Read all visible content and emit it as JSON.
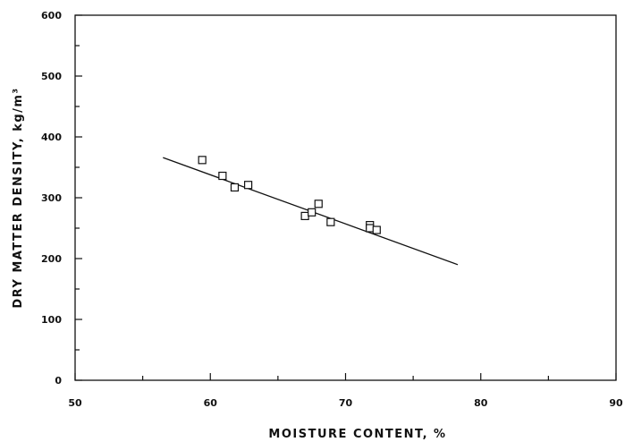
{
  "chart_data": {
    "type": "scatter",
    "xlabel": "MOISTURE CONTENT, %",
    "ylabel": "DRY MATTER DENSITY, kg/m³",
    "xlim": [
      50,
      90
    ],
    "ylim": [
      0,
      600
    ],
    "x_ticks": [
      "50",
      "60",
      "70",
      "80",
      "90"
    ],
    "y_ticks": [
      "0",
      "100",
      "200",
      "300",
      "400",
      "500",
      "600"
    ],
    "grid": false,
    "marker": "open-square",
    "points": [
      {
        "x": 59.4,
        "y": 362
      },
      {
        "x": 60.9,
        "y": 336
      },
      {
        "x": 61.8,
        "y": 317
      },
      {
        "x": 62.8,
        "y": 321
      },
      {
        "x": 67.0,
        "y": 270
      },
      {
        "x": 67.5,
        "y": 276
      },
      {
        "x": 68.0,
        "y": 290
      },
      {
        "x": 68.9,
        "y": 260
      },
      {
        "x": 71.8,
        "y": 255
      },
      {
        "x": 71.8,
        "y": 250
      },
      {
        "x": 72.3,
        "y": 247
      }
    ],
    "fit_line": {
      "x": [
        56.5,
        78.3
      ],
      "y": [
        366,
        190
      ]
    }
  }
}
